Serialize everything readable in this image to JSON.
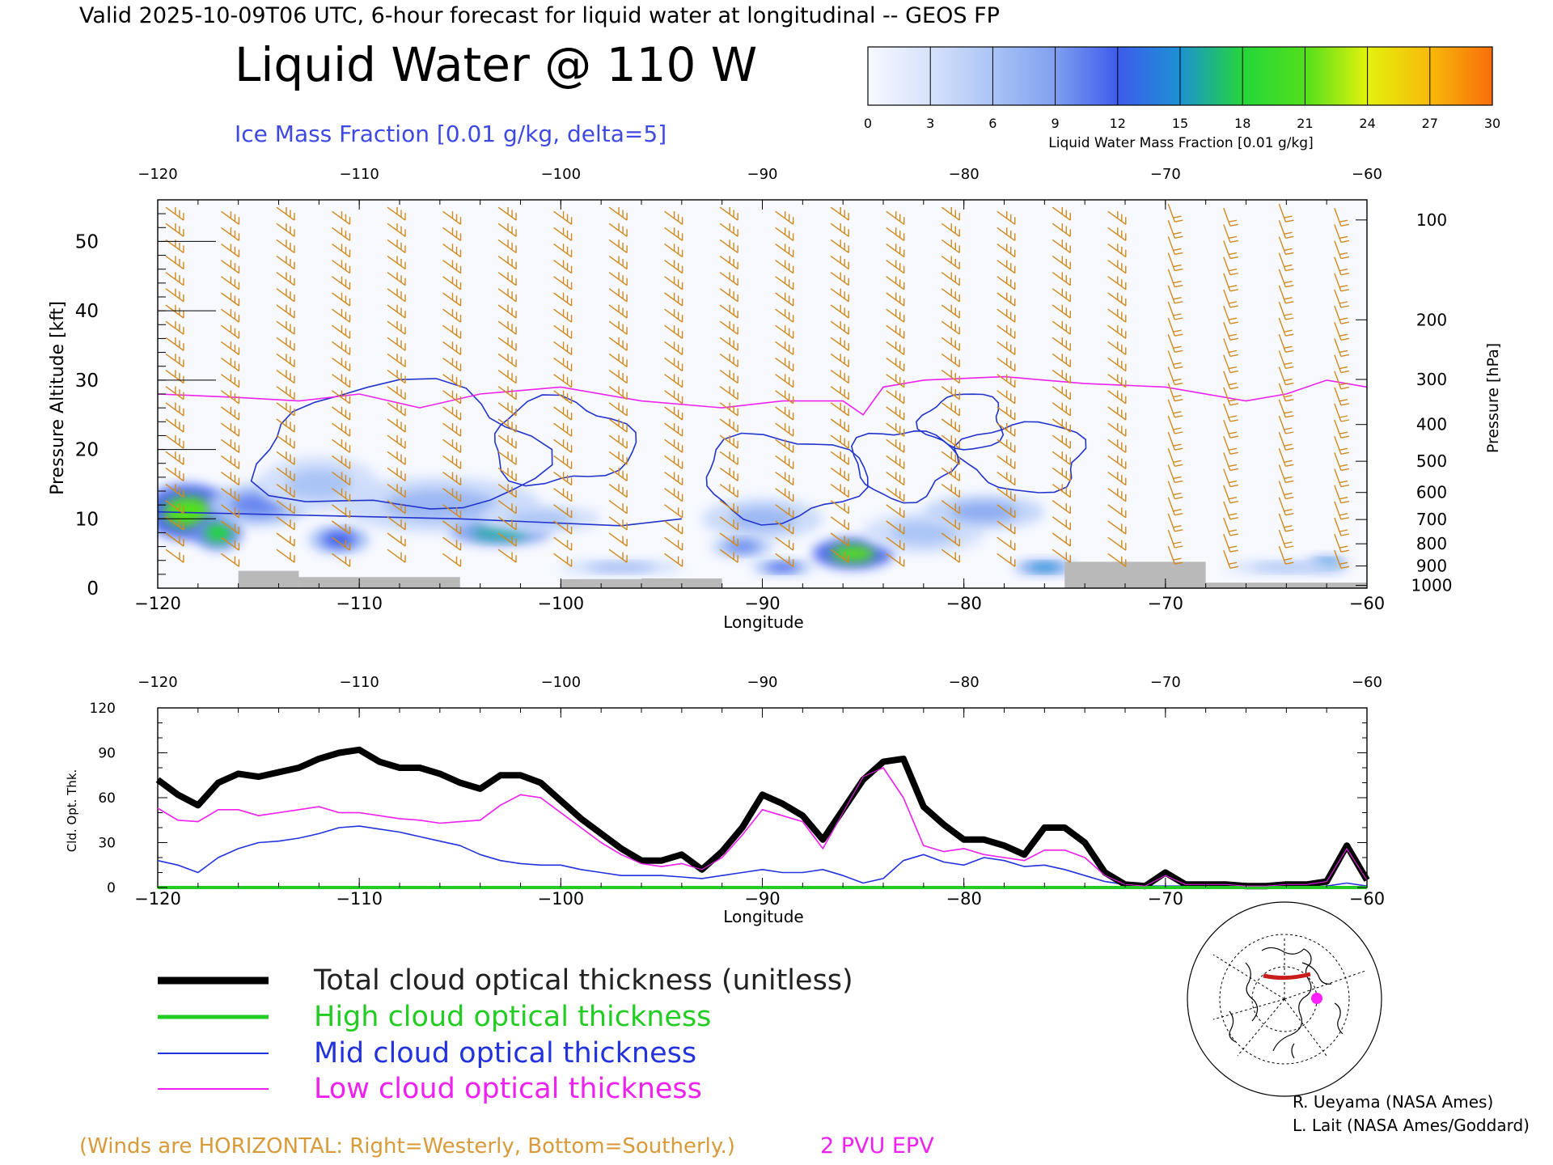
{
  "header": {
    "valid_line": "Valid 2025-10-09T06 UTC, 6-hour forecast for liquid water at longitudinal -- GEOS FP",
    "title": "Liquid Water @ 110 W",
    "subtitle": "Ice Mass Fraction [0.01 g/kg, delta=5]"
  },
  "colorbar": {
    "ticks": [
      "0",
      "3",
      "6",
      "9",
      "12",
      "15",
      "18",
      "21",
      "24",
      "27",
      "30"
    ],
    "label": "Liquid Water Mass Fraction [0.01 g/kg]",
    "colors": [
      "#f7f9ff",
      "#d6e2fb",
      "#aac4f6",
      "#7f9ff0",
      "#3d5bec",
      "#1c92d2",
      "#24d63a",
      "#52df1c",
      "#e3f20c",
      "#f8b90a",
      "#f96d0b"
    ]
  },
  "legend": {
    "total": "Total cloud optical thickness (unitless)",
    "high": "High cloud optical thickness",
    "mid": "Mid cloud optical thickness",
    "low": "Low cloud optical thickness",
    "colors": {
      "total": "#000000",
      "high": "#22cc22",
      "mid": "#2233dd",
      "low": "#ee22ee"
    }
  },
  "footer": {
    "winds_note": "(Winds are HORIZONTAL: Right=Westerly, Bottom=Southerly.)",
    "epv": "2 PVU EPV",
    "credit1": "R. Ueyama (NASA Ames)",
    "credit2": "L. Lait (NASA Ames/Goddard)"
  },
  "chart_data": [
    {
      "type": "heatmap",
      "description_title": "Liquid Water @ 110 W",
      "xlabel": "Longitude",
      "ylabel": "Pressure Altitude [kft]",
      "y2label": "Pressure [hPa]",
      "xlim": [
        -120,
        -60
      ],
      "ylim": [
        0,
        56
      ],
      "x_ticks": [
        "-120",
        "-110",
        "-100",
        "-90",
        "-80",
        "-70",
        "-60"
      ],
      "y_ticks": [
        "0",
        "10",
        "20",
        "30",
        "40",
        "50"
      ],
      "pressure_ticks": [
        {
          "label": "100",
          "kft": 53.1
        },
        {
          "label": "200",
          "kft": 38.7
        },
        {
          "label": "300",
          "kft": 30.1
        },
        {
          "label": "400",
          "kft": 23.6
        },
        {
          "label": "500",
          "kft": 18.3
        },
        {
          "label": "600",
          "kft": 13.8
        },
        {
          "label": "700",
          "kft": 9.9
        },
        {
          "label": "800",
          "kft": 6.4
        },
        {
          "label": "900",
          "kft": 3.2
        },
        {
          "label": "1000",
          "kft": 0.4
        }
      ],
      "liquid_water_blobs": [
        {
          "lon": -118.5,
          "alt": 11,
          "rlon": 2.2,
          "ralt": 4,
          "value": 21
        },
        {
          "lon": -117,
          "alt": 8,
          "rlon": 1.2,
          "ralt": 2.5,
          "value": 18
        },
        {
          "lon": -115,
          "alt": 12,
          "rlon": 2.5,
          "ralt": 3,
          "value": 10
        },
        {
          "lon": -111,
          "alt": 7,
          "rlon": 1.5,
          "ralt": 2,
          "value": 12
        },
        {
          "lon": -112,
          "alt": 15,
          "rlon": 3,
          "ralt": 4,
          "value": 6
        },
        {
          "lon": -106,
          "alt": 12,
          "rlon": 5,
          "ralt": 4,
          "value": 7
        },
        {
          "lon": -103,
          "alt": 8,
          "rlon": 2.5,
          "ralt": 1.8,
          "value": 16
        },
        {
          "lon": -101,
          "alt": 10,
          "rlon": 3,
          "ralt": 2,
          "value": 6
        },
        {
          "lon": -97,
          "alt": 3,
          "rlon": 3,
          "ralt": 1,
          "value": 7
        },
        {
          "lon": -90,
          "alt": 10,
          "rlon": 3,
          "ralt": 3,
          "value": 7
        },
        {
          "lon": -91,
          "alt": 6,
          "rlon": 1.5,
          "ralt": 1.5,
          "value": 10
        },
        {
          "lon": -89,
          "alt": 3,
          "rlon": 1.5,
          "ralt": 1,
          "value": 12
        },
        {
          "lon": -85.5,
          "alt": 5,
          "rlon": 2,
          "ralt": 2.2,
          "value": 21
        },
        {
          "lon": -82,
          "alt": 8,
          "rlon": 3,
          "ralt": 3,
          "value": 6
        },
        {
          "lon": -79,
          "alt": 11,
          "rlon": 3,
          "ralt": 2.5,
          "value": 8
        },
        {
          "lon": -76,
          "alt": 3,
          "rlon": 1.5,
          "ralt": 1,
          "value": 15
        },
        {
          "lon": -62,
          "alt": 3.5,
          "rlon": 1,
          "ralt": 1,
          "value": 15
        },
        {
          "lon": -64,
          "alt": 3,
          "rlon": 3,
          "ralt": 1,
          "value": 6
        }
      ],
      "ice_contours": [
        {
          "lon": -108,
          "alt": 20,
          "rlon": 7,
          "ralt": 9
        },
        {
          "lon": -100,
          "alt": 21,
          "rlon": 3.5,
          "ralt": 6
        },
        {
          "lon": -89,
          "alt": 16,
          "rlon": 4,
          "ralt": 6
        },
        {
          "lon": -83,
          "alt": 18,
          "rlon": 2.5,
          "ralt": 5
        },
        {
          "lon": -77,
          "alt": 19,
          "rlon": 3,
          "ralt": 5
        },
        {
          "lon": -80,
          "alt": 24,
          "rlon": 2,
          "ralt": 4
        }
      ],
      "epv_2pvu": {
        "lon": [
          -120,
          -116,
          -113,
          -110,
          -107,
          -104,
          -100,
          -96,
          -92,
          -89,
          -86,
          -85,
          -84,
          -82,
          -78,
          -74,
          -70,
          -66,
          -64,
          -62,
          -60
        ],
        "alt": [
          28,
          27.5,
          27,
          28,
          26,
          28,
          29,
          27,
          26,
          27,
          27,
          25,
          29,
          30,
          30.5,
          29.5,
          29,
          27,
          28,
          30,
          29
        ]
      },
      "surface_terrain": [
        {
          "lon0": -116,
          "lon1": -113,
          "alt": 2.5
        },
        {
          "lon0": -113,
          "lon1": -105,
          "alt": 1.6
        },
        {
          "lon0": -100,
          "lon1": -96,
          "alt": 1.3
        },
        {
          "lon0": -96,
          "lon1": -92,
          "alt": 1.4
        },
        {
          "lon0": -75,
          "lon1": -68,
          "alt": 3.8
        },
        {
          "lon0": -68,
          "lon1": -60,
          "alt": 0.8
        }
      ]
    },
    {
      "type": "line",
      "xlabel": "Longitude",
      "ylabel": "Cld. Opt. Thk.",
      "xlim": [
        -120,
        -60
      ],
      "ylim": [
        0,
        120
      ],
      "x_ticks": [
        "-120",
        "-110",
        "-100",
        "-90",
        "-80",
        "-70",
        "-60"
      ],
      "y_ticks": [
        "0",
        "30",
        "60",
        "90",
        "120"
      ],
      "x": [
        -120,
        -119,
        -118,
        -117,
        -116,
        -115,
        -114,
        -113,
        -112,
        -111,
        -110,
        -109,
        -108,
        -107,
        -106,
        -105,
        -104,
        -103,
        -102,
        -101,
        -100,
        -99,
        -98,
        -97,
        -96,
        -95,
        -94,
        -93,
        -92,
        -91,
        -90,
        -89,
        -88,
        -87,
        -86,
        -85,
        -84,
        -83,
        -82,
        -81,
        -80,
        -79,
        -78,
        -77,
        -76,
        -75,
        -74,
        -73,
        -72,
        -71,
        -70,
        -69,
        -68,
        -67,
        -66,
        -65,
        -64,
        -63,
        -62,
        -61,
        -60
      ],
      "series": [
        {
          "name": "Total cloud optical thickness (unitless)",
          "values": [
            72,
            62,
            55,
            70,
            76,
            74,
            77,
            80,
            86,
            90,
            92,
            84,
            80,
            80,
            76,
            70,
            66,
            75,
            75,
            70,
            58,
            46,
            36,
            26,
            18,
            18,
            22,
            12,
            24,
            40,
            62,
            56,
            48,
            32,
            52,
            72,
            84,
            86,
            54,
            42,
            32,
            32,
            28,
            22,
            40,
            40,
            30,
            10,
            2,
            1,
            10,
            2,
            2,
            2,
            1,
            1,
            2,
            2,
            4,
            28,
            5
          ]
        },
        {
          "name": "High cloud optical thickness",
          "values": [
            0,
            0,
            0,
            0,
            0,
            0,
            0,
            0,
            0,
            0,
            0,
            0,
            0,
            0,
            0,
            0,
            0,
            0,
            0,
            0,
            0,
            0,
            0,
            0,
            0,
            0,
            0,
            0,
            0,
            0,
            0,
            0,
            0,
            0,
            0,
            0,
            0,
            0,
            0,
            0,
            0,
            0,
            0,
            0,
            0,
            0,
            0,
            0,
            0,
            0,
            0,
            0,
            0,
            0,
            0,
            0,
            0,
            0,
            0,
            0,
            0
          ]
        },
        {
          "name": "Mid cloud optical thickness",
          "values": [
            18,
            15,
            10,
            20,
            26,
            30,
            31,
            33,
            36,
            40,
            41,
            39,
            37,
            34,
            31,
            28,
            22,
            18,
            16,
            15,
            15,
            12,
            10,
            8,
            8,
            8,
            7,
            6,
            8,
            10,
            12,
            10,
            10,
            12,
            8,
            3,
            6,
            18,
            22,
            17,
            15,
            20,
            18,
            14,
            15,
            12,
            8,
            4,
            2,
            1,
            1,
            1,
            0,
            0,
            0,
            0,
            0,
            0,
            1,
            3,
            1
          ]
        },
        {
          "name": "Low cloud optical thickness",
          "values": [
            53,
            45,
            44,
            52,
            52,
            48,
            50,
            52,
            54,
            50,
            50,
            48,
            46,
            45,
            43,
            44,
            45,
            55,
            62,
            60,
            50,
            40,
            30,
            22,
            16,
            14,
            16,
            12,
            20,
            35,
            52,
            48,
            44,
            26,
            50,
            74,
            80,
            60,
            28,
            24,
            26,
            22,
            20,
            18,
            25,
            25,
            20,
            8,
            2,
            1,
            8,
            2,
            2,
            2,
            1,
            1,
            2,
            2,
            4,
            26,
            5
          ]
        }
      ]
    }
  ]
}
